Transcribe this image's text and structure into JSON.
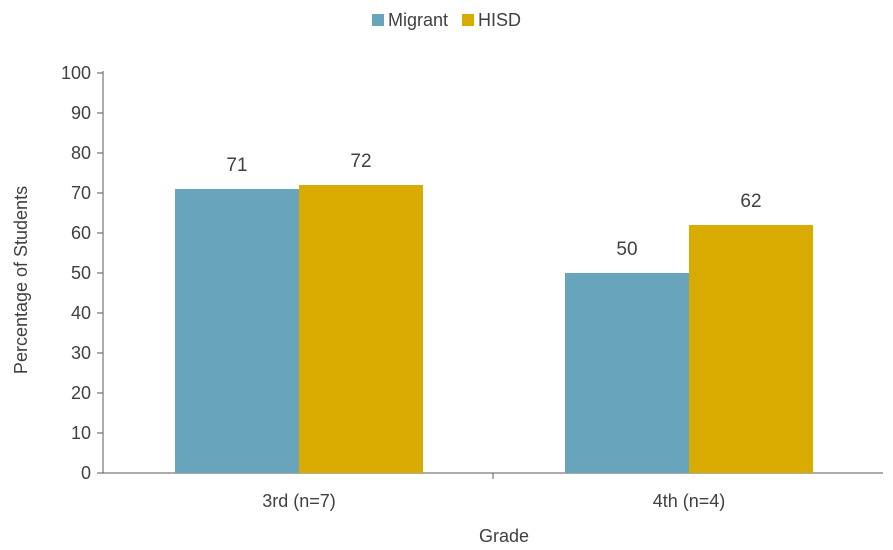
{
  "chart_data": {
    "type": "bar",
    "categories": [
      "3rd (n=7)",
      "4th (n=4)"
    ],
    "series": [
      {
        "name": "Migrant",
        "values": [
          71,
          50
        ],
        "color": "#68a4bb"
      },
      {
        "name": "HISD",
        "values": [
          72,
          62
        ],
        "color": "#d9aa00"
      }
    ],
    "xlabel": "Grade",
    "ylabel": "Percentage of Students",
    "ylim": [
      0,
      100
    ],
    "yticks": [
      0,
      10,
      20,
      30,
      40,
      50,
      60,
      70,
      80,
      90,
      100
    ],
    "grid": false,
    "legend": "top-center",
    "data_labels": true
  }
}
